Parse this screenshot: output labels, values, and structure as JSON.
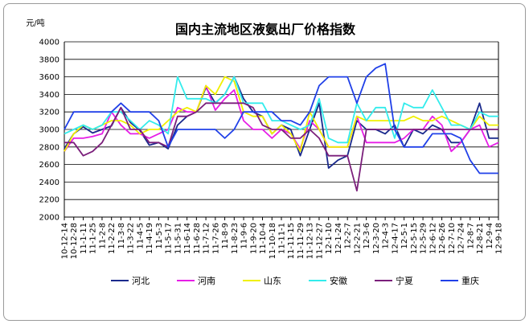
{
  "chart_data": {
    "type": "line",
    "title": "国内主流地区液氨出厂价格指数",
    "ylabel": "元/吨",
    "ylim": [
      2000,
      4000
    ],
    "yticks": [
      2000,
      2200,
      2400,
      2600,
      2800,
      3000,
      3200,
      3400,
      3600,
      3800,
      4000
    ],
    "grid": "horizontal",
    "legend_position": "bottom",
    "x": [
      "10-12-14",
      "10-12-28",
      "11-1-11",
      "11-1-25",
      "11-2-8",
      "11-2-22",
      "11-3-8",
      "11-3-22",
      "11-4-5",
      "11-4-19",
      "11-5-3",
      "11-5-17",
      "11-5-31",
      "11-6-14",
      "11-6-28",
      "11-7-12",
      "11-7-26",
      "11-8-9",
      "11-8-23",
      "11-9-6",
      "11-9-20",
      "11-10-4",
      "11-10-18",
      "11-11-1",
      "11-11-15",
      "11-11-29",
      "11-12-13",
      "11-12-27",
      "12-1-10",
      "12-1-24",
      "12-2-7",
      "12-2-21",
      "12-3-6",
      "12-3-20",
      "12-4-3",
      "12-4-17",
      "12-5-1",
      "12-5-15",
      "12-5-29",
      "12-6-12",
      "12-6-26",
      "12-7-10",
      "12-7-24",
      "12-8-7",
      "12-8-21",
      "12-9-4",
      "12-9-18"
    ],
    "series": [
      {
        "name": "河北",
        "color": "#1a2a8c",
        "values": [
          2780,
          2950,
          3030,
          2960,
          3000,
          3040,
          3250,
          3080,
          2990,
          2820,
          2850,
          2780,
          3050,
          3150,
          3200,
          3480,
          3300,
          3400,
          3600,
          3350,
          3200,
          3150,
          2950,
          3050,
          3000,
          2700,
          3000,
          3300,
          2560,
          2650,
          2700,
          3100,
          3000,
          3000,
          2950,
          3050,
          2800,
          3000,
          2950,
          3050,
          3000,
          2850,
          2850,
          3000,
          3300,
          2900,
          2900
        ]
      },
      {
        "name": "河南",
        "color": "#e61ee6",
        "values": [
          2750,
          2900,
          2900,
          2920,
          2950,
          3200,
          3050,
          2950,
          2950,
          2900,
          2950,
          3000,
          3250,
          3200,
          3200,
          3500,
          3220,
          3350,
          3450,
          3100,
          3000,
          3000,
          2900,
          3000,
          2950,
          2780,
          3100,
          3000,
          2800,
          2800,
          2800,
          3150,
          2850,
          2850,
          2850,
          2850,
          2900,
          3000,
          3000,
          3150,
          3050,
          2750,
          2850,
          3000,
          3050,
          2800,
          2850
        ]
      },
      {
        "name": "山东",
        "color": "#f0f000",
        "values": [
          2750,
          2950,
          3050,
          3000,
          3050,
          3100,
          3100,
          3050,
          2950,
          3000,
          3000,
          3100,
          3200,
          3250,
          3200,
          3500,
          3400,
          3600,
          3550,
          3200,
          3150,
          3150,
          2950,
          3050,
          2950,
          2750,
          3200,
          3000,
          2800,
          2800,
          2800,
          3150,
          3100,
          3100,
          3100,
          3100,
          3100,
          3150,
          3100,
          3100,
          3150,
          3100,
          3050,
          3000,
          3150,
          3050,
          3050
        ]
      },
      {
        "name": "安徽",
        "color": "#33ecec",
        "values": [
          2950,
          3000,
          3050,
          3000,
          3050,
          3200,
          3200,
          3100,
          3000,
          3100,
          3050,
          2950,
          3600,
          3350,
          3350,
          3350,
          3300,
          3400,
          3600,
          3300,
          3300,
          3300,
          3100,
          3100,
          3050,
          3000,
          3050,
          3350,
          2900,
          2850,
          2850,
          3300,
          3100,
          3250,
          3250,
          2900,
          3300,
          3250,
          3250,
          3450,
          3250,
          3050,
          3050,
          3000,
          3200,
          3150,
          3150
        ]
      },
      {
        "name": "宁夏",
        "color": "#7b1f7b",
        "values": [
          2850,
          2850,
          2700,
          2750,
          2850,
          3050,
          3250,
          3000,
          3000,
          2850,
          2850,
          2800,
          3150,
          3150,
          3200,
          3300,
          3300,
          3300,
          3300,
          3300,
          3250,
          3050,
          3000,
          3000,
          2900,
          2900,
          3000,
          2900,
          2700,
          2700,
          2700,
          2300,
          3000,
          3000,
          3000,
          3000,
          3000,
          3000,
          3000,
          3000,
          3000,
          3000,
          3000,
          3000,
          3000,
          3000,
          3000
        ]
      },
      {
        "name": "重庆",
        "color": "#2040e8",
        "values": [
          3000,
          3200,
          3200,
          3200,
          3200,
          3200,
          3300,
          3200,
          3200,
          3200,
          3100,
          2800,
          3000,
          3000,
          3000,
          3000,
          3000,
          2900,
          3000,
          3200,
          3200,
          3200,
          3200,
          3100,
          3100,
          3050,
          3200,
          3500,
          3600,
          3600,
          3600,
          3300,
          3600,
          3700,
          3750,
          3000,
          2800,
          2800,
          2800,
          2950,
          2950,
          2950,
          2900,
          2650,
          2500,
          2500,
          2500
        ]
      }
    ]
  }
}
